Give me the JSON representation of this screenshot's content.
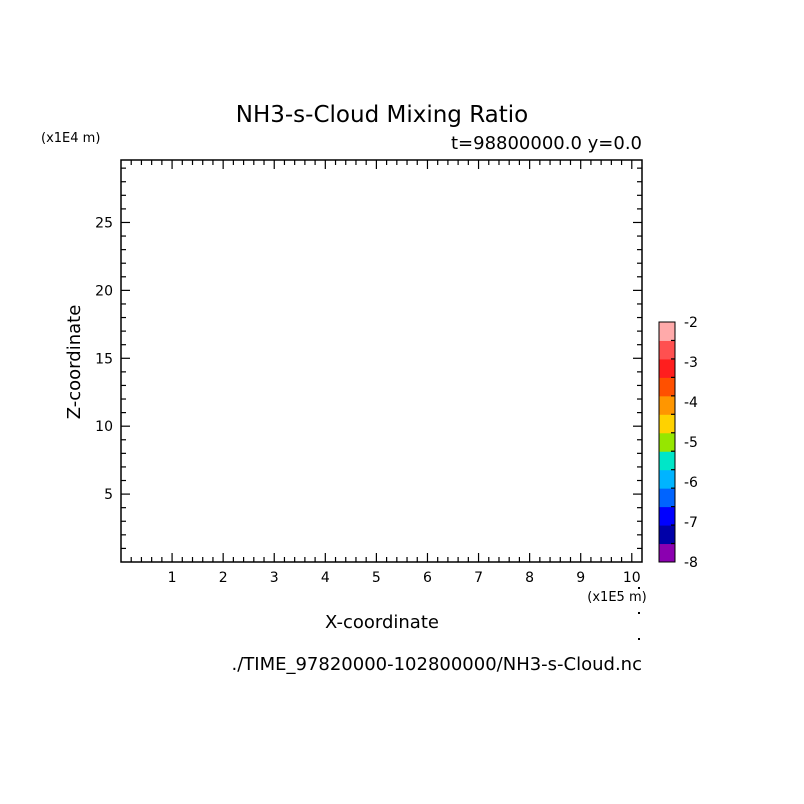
{
  "chart_data": {
    "type": "heatmap",
    "title": "NH3-s-Cloud Mixing Ratio",
    "subtitle": "t=98800000.0 y=0.0",
    "xlabel": "X-coordinate",
    "ylabel": "Z-coordinate",
    "x_units": "(x1E5 m)",
    "y_units": "(x1E4 m)",
    "xlim": [
      0,
      10.2
    ],
    "ylim": [
      0,
      29.6
    ],
    "x_ticks": [
      1,
      2,
      3,
      4,
      5,
      6,
      7,
      8,
      9,
      10
    ],
    "y_ticks": [
      5,
      10,
      15,
      20,
      25
    ],
    "grid": false,
    "data": [],
    "colorbar": {
      "min": -8,
      "max": -2,
      "step": 0.5,
      "tick_labels": [
        "-2",
        "-3",
        "-4",
        "-5",
        "-6",
        "-7",
        "-8"
      ],
      "colors": [
        "#8b00b0",
        "#0000a8",
        "#0000ff",
        "#0064ff",
        "#00b4ff",
        "#00e6c8",
        "#96e600",
        "#ffd200",
        "#ff9600",
        "#ff5000",
        "#ff1e1e",
        "#ff5050",
        "#ffaaaa"
      ]
    },
    "source_file": "./TIME_97820000-102800000/NH3-s-Cloud.nc"
  }
}
